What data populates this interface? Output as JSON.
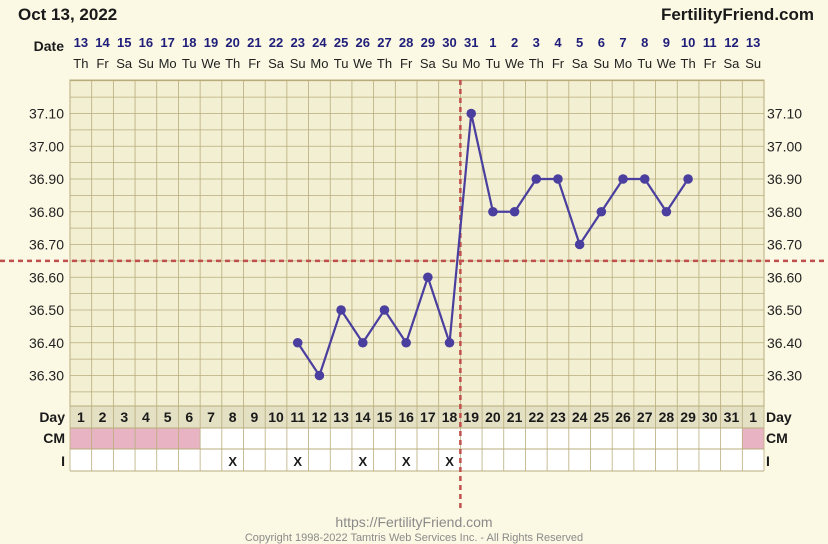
{
  "header": {
    "date": "Oct 13, 2022",
    "site": "FertilityFriend.com"
  },
  "rows": {
    "date_label": "Date",
    "day_label": "Day",
    "cm_label": "CM",
    "i_label": "I"
  },
  "chart_data": {
    "type": "line",
    "x_dates": [
      "13",
      "14",
      "15",
      "16",
      "17",
      "18",
      "19",
      "20",
      "21",
      "22",
      "23",
      "24",
      "25",
      "26",
      "27",
      "28",
      "29",
      "30",
      "31",
      "1",
      "2",
      "3",
      "4",
      "5",
      "6",
      "7",
      "8",
      "9",
      "10",
      "11",
      "12",
      "13"
    ],
    "x_weekdays": [
      "Th",
      "Fr",
      "Sa",
      "Su",
      "Mo",
      "Tu",
      "We",
      "Th",
      "Fr",
      "Sa",
      "Su",
      "Mo",
      "Tu",
      "We",
      "Th",
      "Fr",
      "Sa",
      "Su",
      "Mo",
      "Tu",
      "We",
      "Th",
      "Fr",
      "Sa",
      "Su",
      "Mo",
      "Tu",
      "We",
      "Th",
      "Fr",
      "Sa",
      "Su"
    ],
    "cycle_days": [
      "1",
      "2",
      "3",
      "4",
      "5",
      "6",
      "7",
      "8",
      "9",
      "10",
      "11",
      "12",
      "13",
      "14",
      "15",
      "16",
      "17",
      "18",
      "19",
      "20",
      "21",
      "22",
      "23",
      "24",
      "25",
      "26",
      "27",
      "28",
      "29",
      "30",
      "31",
      "1"
    ],
    "y_ticks": [
      "37.10",
      "37.00",
      "36.90",
      "36.80",
      "36.70",
      "36.60",
      "36.50",
      "36.40",
      "36.30"
    ],
    "ylim": [
      36.2,
      37.2
    ],
    "temperatures": [
      null,
      null,
      null,
      null,
      null,
      null,
      null,
      null,
      null,
      null,
      36.4,
      36.3,
      36.5,
      36.4,
      36.5,
      36.4,
      36.6,
      36.4,
      37.1,
      36.8,
      36.8,
      36.9,
      36.9,
      36.7,
      36.8,
      36.9,
      36.9,
      36.8,
      36.9,
      null,
      null,
      null
    ],
    "coverline": 36.65,
    "ovulation_day": 18,
    "cm_shaded": [
      true,
      true,
      true,
      true,
      true,
      true,
      false,
      false,
      false,
      false,
      false,
      false,
      false,
      false,
      false,
      false,
      false,
      false,
      false,
      false,
      false,
      false,
      false,
      false,
      false,
      false,
      false,
      false,
      false,
      false,
      false,
      true
    ],
    "i_marks": [
      "",
      "",
      "",
      "",
      "",
      "",
      "",
      "X",
      "",
      "",
      "X",
      "",
      "",
      "X",
      "",
      "X",
      "",
      "X",
      "",
      "",
      "",
      "",
      "",
      "",
      "",
      "",
      "",
      "",
      "",
      "",
      "",
      ""
    ],
    "colors": {
      "line": "#4a3f9f",
      "coverline": "#c0504d",
      "cm": "#e8b4c4",
      "grid": "#b8ad7c",
      "background": "#f3efd2"
    }
  },
  "footer": {
    "url": "https://FertilityFriend.com",
    "copyright": "Copyright 1998-2022 Tamtris Web Services Inc. - All Rights Reserved"
  }
}
